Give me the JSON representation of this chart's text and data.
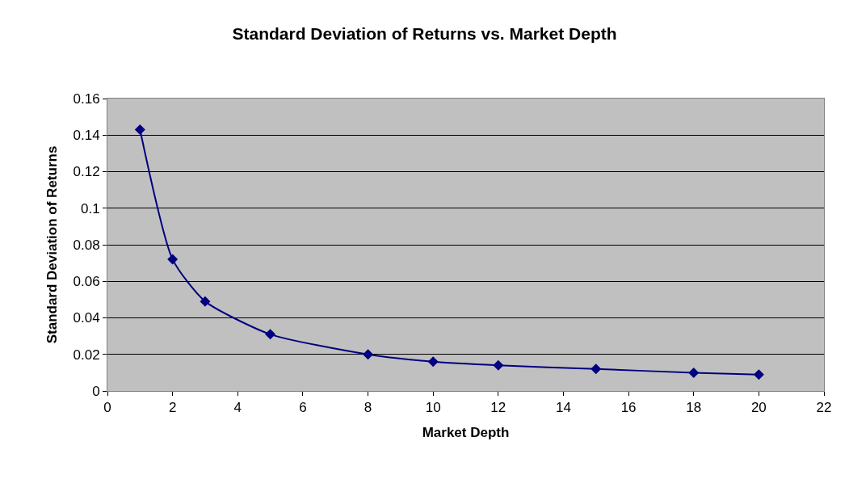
{
  "chart_data": {
    "type": "line",
    "title": "Standard Deviation of Returns vs. Market Depth",
    "xlabel": "Market Depth",
    "ylabel": "Standard Deviation of Returns",
    "x": [
      1,
      2,
      3,
      5,
      8,
      10,
      12,
      15,
      18,
      20
    ],
    "series": [
      {
        "color": "#000080",
        "values": [
          0.143,
          0.072,
          0.049,
          0.031,
          0.02,
          0.016,
          0.014,
          0.012,
          0.01,
          0.009
        ]
      }
    ],
    "xlim": [
      0,
      22
    ],
    "xticks": [
      0,
      2,
      4,
      6,
      8,
      10,
      12,
      14,
      16,
      18,
      20,
      22
    ],
    "ylim": [
      0,
      0.16
    ],
    "yticks": [
      0,
      0.02,
      0.04,
      0.06,
      0.08,
      0.1,
      0.12,
      0.14,
      0.16
    ],
    "grid": "y",
    "marker": "diamond",
    "line_style": "solid"
  }
}
